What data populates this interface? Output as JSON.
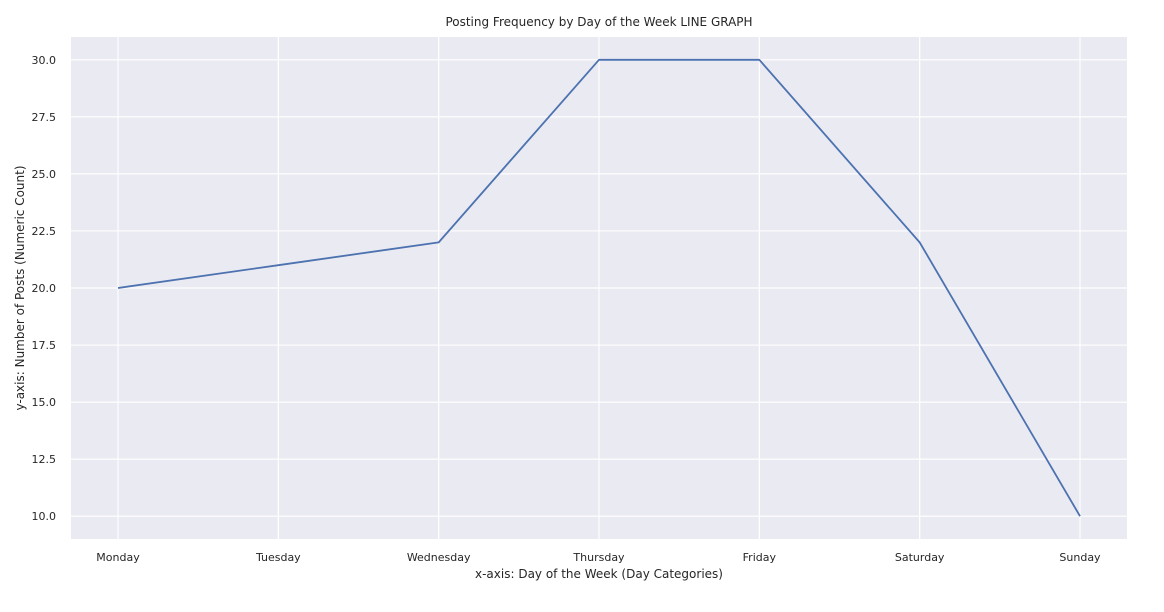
{
  "chart_data": {
    "type": "line",
    "title": "Posting Frequency by Day of the Week LINE GRAPH",
    "xlabel": "x-axis: Day of the Week (Day Categories)",
    "ylabel": "y-axis: Number of Posts (Numeric Count)",
    "categories": [
      "Monday",
      "Tuesday",
      "Wednesday",
      "Thursday",
      "Friday",
      "Saturday",
      "Sunday"
    ],
    "series": [
      {
        "values": [
          20,
          21,
          22,
          30,
          30,
          22,
          10
        ],
        "color": "#4c72b0"
      }
    ],
    "ylim": [
      9.0,
      31.0
    ],
    "yticks": [
      "10.0",
      "12.5",
      "15.0",
      "17.5",
      "20.0",
      "22.5",
      "25.0",
      "27.5",
      "30.0"
    ],
    "grid": true,
    "background_color": "#eaeaf2",
    "grid_color": "#ffffff"
  }
}
